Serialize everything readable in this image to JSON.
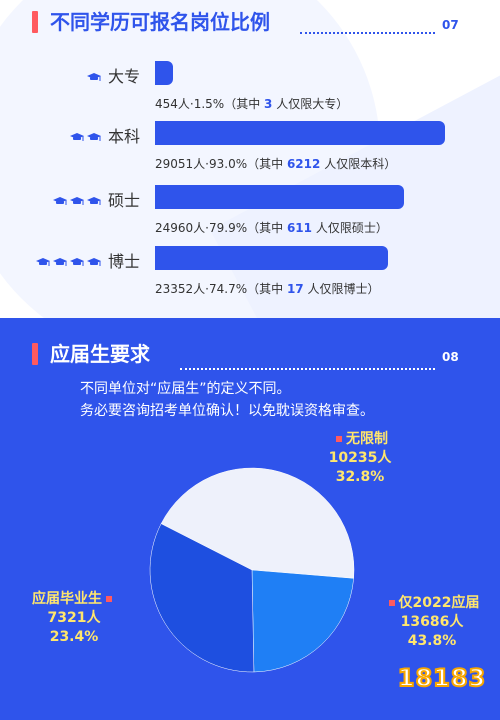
{
  "section1": {
    "title": "不同学历可报名岗位比例",
    "number": "07",
    "rows": [
      {
        "label": "大专",
        "caps": 1,
        "count_text": "454人·1.5%（其中",
        "limited": "3",
        "suffix": "人仅限大专）"
      },
      {
        "label": "本科",
        "caps": 2,
        "count_text": "29051人·93.0%（其中",
        "limited": "6212",
        "suffix": "人仅限本科）"
      },
      {
        "label": "硕士",
        "caps": 3,
        "count_text": "24960人·79.9%（其中",
        "limited": "611",
        "suffix": "人仅限硕士）"
      },
      {
        "label": "博士",
        "caps": 4,
        "count_text": "23352人·74.7%（其中",
        "limited": "17",
        "suffix": "人仅限博士）"
      }
    ]
  },
  "section2": {
    "title": "应届生要求",
    "number": "08",
    "note_line1": "不同单位对“应届生”的定义不同。",
    "note_line2": "务必要咨询招考单位确认！以免耽误资格审查。",
    "slices": [
      {
        "label": "无限制",
        "value_text": "10235人",
        "pct_text": "32.8%"
      },
      {
        "label": "仅2022应届",
        "value_text": "13686人",
        "pct_text": "43.8%"
      },
      {
        "label": "应届毕业生",
        "value_text": "7321人",
        "pct_text": "23.4%"
      }
    ]
  },
  "watermark": "18183",
  "colors": {
    "primary_blue": "#2f54eb",
    "accent_red": "#ff5a5f",
    "label_yellow": "#ffe66d",
    "slice_light": "#eef1fb",
    "slice_mid": "#1f7ff5",
    "slice_dark": "#1e4fe0",
    "watermark_orange": "#f7a600"
  },
  "chart_data": [
    {
      "type": "bar",
      "categories": [
        "大专",
        "本科",
        "硕士",
        "博士"
      ],
      "values": [
        1.5,
        93.0,
        79.9,
        74.7
      ],
      "counts": [
        454,
        29051,
        24960,
        23352
      ],
      "limited_only": [
        3,
        6212,
        611,
        17
      ],
      "title": "不同学历可报名岗位比例",
      "ylim": [
        0,
        100
      ]
    },
    {
      "type": "pie",
      "categories": [
        "无限制",
        "仅2022应届",
        "应届毕业生"
      ],
      "values": [
        32.8,
        43.8,
        23.4
      ],
      "counts": [
        10235,
        13686,
        7321
      ],
      "title": "应届生要求"
    }
  ]
}
